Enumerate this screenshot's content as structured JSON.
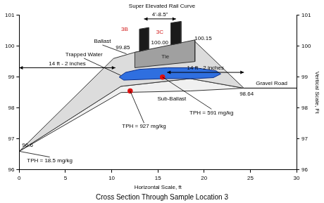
{
  "chart_data": {
    "type": "line",
    "title": "Cross Section Through Sample Location 3",
    "subtitle": "Super Elevated Rail Curve",
    "x_label": "Horizontal Scale, ft",
    "y2_label": "Vertical Scale, Ft",
    "xlim": [
      0,
      30
    ],
    "xticks": [
      0,
      5,
      10,
      15,
      20,
      25,
      30
    ],
    "ylim": [
      96,
      101
    ],
    "yticks": [
      96,
      97,
      98,
      99,
      100,
      101
    ],
    "y2lim": [
      96,
      101
    ],
    "y2ticks": [
      96,
      97,
      98,
      99,
      100,
      101
    ],
    "grid": false,
    "legend": false,
    "series": [
      {
        "type": "area",
        "color": "#f0f0f0",
        "x": [
          0,
          11,
          18.5,
          24.3,
          18.5,
          11,
          0
        ],
        "values": [
          96.6,
          98.7,
          98.95,
          98.64,
          98.55,
          98.5,
          96.6
        ]
      },
      {
        "type": "area",
        "color": "#dcdcdc",
        "x": [
          0,
          10.2,
          12.5,
          19,
          24.3,
          18.5,
          11,
          0
        ],
        "values": [
          96.6,
          99.6,
          99.8,
          100.15,
          98.64,
          98.95,
          98.7,
          96.6
        ]
      },
      {
        "type": "area",
        "color": "#2f6fe0",
        "x": [
          10.8,
          11.5,
          13,
          16,
          19,
          21.3,
          21.8,
          21,
          19,
          16,
          13,
          11.3,
          10.8
        ],
        "values": [
          99.0,
          99.15,
          99.25,
          99.3,
          99.3,
          99.2,
          99.1,
          98.98,
          98.95,
          98.95,
          98.92,
          98.9,
          99.0
        ]
      },
      {
        "type": "area",
        "color": "#a0a0a0",
        "x": [
          12.5,
          12.5,
          19,
          19,
          12.5
        ],
        "values": [
          99.3,
          99.8,
          100.2,
          99.5,
          99.3
        ]
      },
      {
        "type": "area",
        "color": "#1a1a1a",
        "x": [
          13,
          13,
          14,
          14,
          13
        ],
        "values": [
          99.83,
          100.55,
          100.6,
          99.9,
          99.83
        ]
      },
      {
        "type": "area",
        "color": "#1a1a1a",
        "x": [
          16.4,
          16.4,
          17.5,
          17.5,
          16.4
        ],
        "values": [
          100.04,
          100.75,
          100.8,
          100.1,
          100.04
        ]
      },
      {
        "type": "line",
        "color": "#444444",
        "marker": "none",
        "line_style": "solid",
        "x": [
          24.3,
          30
        ],
        "values": [
          98.64,
          98.64
        ]
      },
      {
        "type": "line",
        "color": "#e01010",
        "marker": "circle",
        "line_style": "none",
        "x": [
          15.5,
          12.0
        ],
        "values": [
          99.0,
          98.55
        ]
      }
    ],
    "annotations": [
      {
        "text": "Ballast",
        "x": 9.0,
        "y": 100.15,
        "to": [
          11.6,
          99.75
        ]
      },
      {
        "text": "3B",
        "x": 11.4,
        "y": 100.55,
        "color": "#d01010"
      },
      {
        "text": "3C",
        "x": 15.2,
        "y": 100.45,
        "color": "#d01010"
      },
      {
        "text": "99.85",
        "x": 11.2,
        "y": 99.95
      },
      {
        "text": "100.00",
        "x": 15.2,
        "y": 100.12
      },
      {
        "text": "100.15",
        "x": 19.9,
        "y": 100.25
      },
      {
        "text": "Trapped Water",
        "x": 7.0,
        "y": 99.72,
        "to": [
          11.0,
          99.05
        ]
      },
      {
        "text": "Tie",
        "x": 15.8,
        "y": 99.65,
        "color": "#222222"
      },
      {
        "text": "Sub-Ballast",
        "x": 16.5,
        "y": 98.3
      },
      {
        "text": "TPH = 591 mg/kg",
        "x": 20.8,
        "y": 97.85,
        "to": [
          15.5,
          99.0
        ]
      },
      {
        "text": "TPH = 927 mg/kg",
        "x": 13.5,
        "y": 97.4,
        "to": [
          12.0,
          98.55
        ]
      },
      {
        "text": "TPH = 18.5 mg/kg",
        "x": 3.3,
        "y": 96.3,
        "to": [
          0,
          96.6
        ]
      },
      {
        "text": "96.6",
        "x": 0.9,
        "y": 96.8
      },
      {
        "text": "98.64",
        "x": 24.6,
        "y": 98.45
      },
      {
        "text": "Gravel Road",
        "x": 27.3,
        "y": 98.8
      }
    ],
    "dimensions": [
      {
        "label": "14 ft - 2 inches",
        "x": [
          0,
          10.4
        ],
        "y": 99.3
      },
      {
        "label": "14 ft - 2 inches",
        "x": [
          16,
          24.3
        ],
        "y": 99.15
      },
      {
        "label": "4'-8.5\"",
        "x": [
          13.5,
          16.95
        ],
        "y": 100.88
      }
    ]
  }
}
